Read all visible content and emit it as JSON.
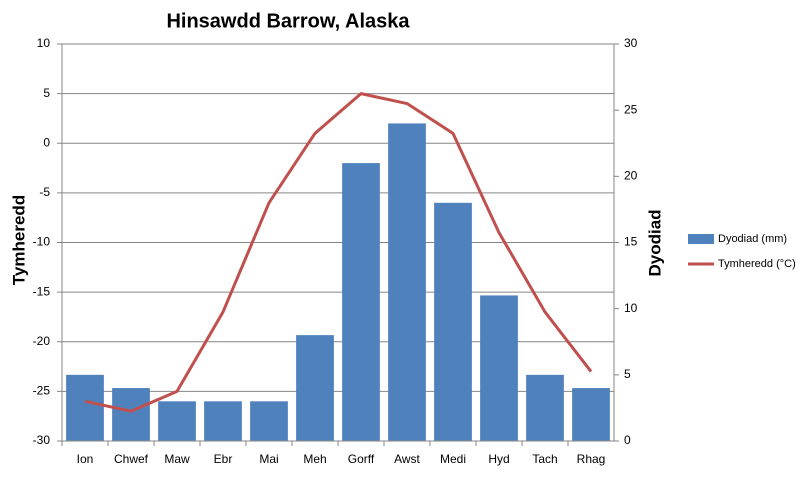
{
  "chart_data": {
    "type": "bar",
    "title": "Hinsawdd Barrow, Alaska",
    "y_label": "Tymheredd",
    "y2_label": "Dyodiad",
    "categories": [
      "Ion",
      "Chwef",
      "Maw",
      "Ebr",
      "Mai",
      "Meh",
      "Gorff",
      "Awst",
      "Medi",
      "Hyd",
      "Tach",
      "Rhag"
    ],
    "series": [
      {
        "name": "Dyodiad (mm)",
        "type": "bar",
        "axis": "y2",
        "color": "#4f81bd",
        "values": [
          5,
          4,
          3,
          3,
          3,
          8,
          21,
          24,
          18,
          11,
          5,
          4
        ]
      },
      {
        "name": "Tymheredd (°C)",
        "type": "line",
        "color": "#c0504d",
        "values": [
          -26,
          -27,
          -25,
          -17,
          -6,
          1,
          5,
          4,
          1,
          -9,
          -17,
          -23
        ]
      }
    ],
    "ylim": [
      -30,
      10
    ],
    "yticks": [
      -30,
      -25,
      -20,
      -15,
      -10,
      -5,
      0,
      5,
      10
    ],
    "y2lim": [
      0,
      30
    ],
    "y2ticks": [
      0,
      5,
      10,
      15,
      20,
      25,
      30
    ],
    "grid": true,
    "legend": "right"
  }
}
